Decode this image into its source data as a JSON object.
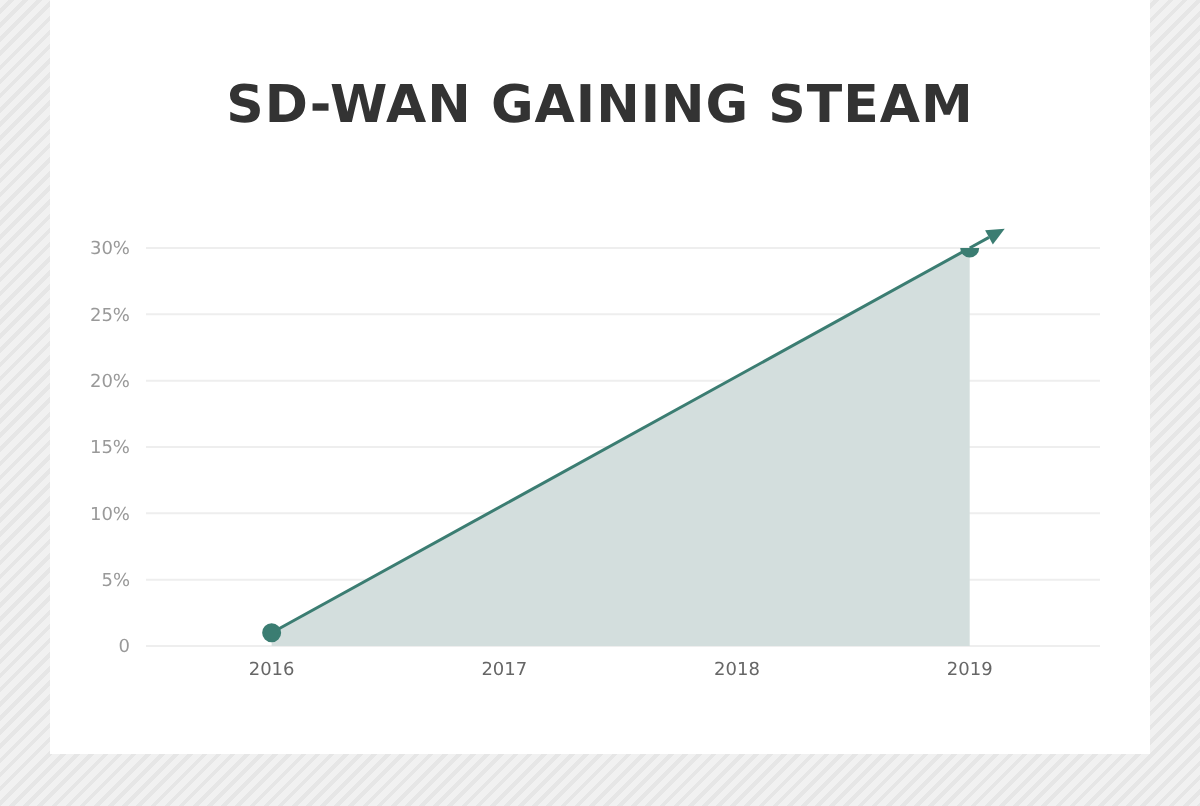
{
  "chart_data": {
    "type": "area",
    "title": "SD-WAN GAINING STEAM",
    "x": [
      2016,
      2019
    ],
    "series": [
      {
        "color": "#3b7d72",
        "values": [
          1,
          30
        ]
      }
    ],
    "xlim": [
      2015.46,
      2019.56
    ],
    "xticks": [
      2016,
      2017,
      2018,
      2019
    ],
    "ylim": [
      0,
      30
    ],
    "yticks": [
      0,
      {
        "value": 5,
        "label": "5%"
      },
      {
        "value": 10,
        "label": "10%"
      },
      {
        "value": 15,
        "label": "15%"
      },
      {
        "value": 20,
        "label": "20%"
      },
      {
        "value": 25,
        "label": "25%"
      },
      {
        "value": 30,
        "label": "30%"
      }
    ],
    "grid": "y",
    "marker": "circle",
    "line_style": "solid"
  }
}
